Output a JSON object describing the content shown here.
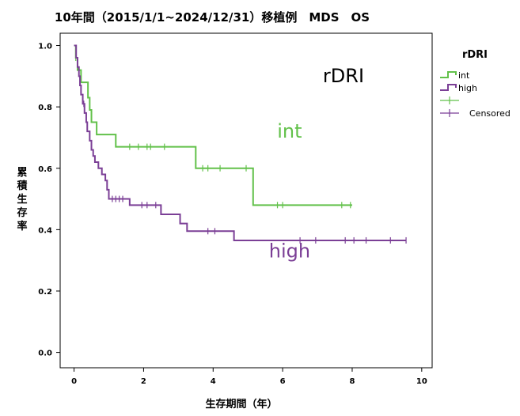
{
  "chart_data": {
    "type": "line",
    "subtype": "kaplan-meier",
    "title": "10年間（2015/1/1~2024/12/31）移植例　MDS　OS",
    "xlabel": "生存期間（年）",
    "ylabel": "累積生存率",
    "xlim": [
      -0.4,
      10.3
    ],
    "ylim": [
      -0.05,
      1.04
    ],
    "xticks": [
      0,
      2,
      4,
      6,
      8,
      10
    ],
    "yticks": [
      0.0,
      0.2,
      0.4,
      0.6,
      0.8,
      1.0
    ],
    "xtick_labels": [
      "0",
      "2",
      "4",
      "6",
      "8",
      "10"
    ],
    "ytick_labels": [
      "0.0",
      "0.2",
      "0.4",
      "0.6",
      "0.8",
      "1.0"
    ],
    "grid": false,
    "legend": {
      "title": "rDRI",
      "placement": "right",
      "entries": [
        "int",
        "high",
        "",
        "Censored"
      ]
    },
    "annotations": [
      {
        "text": "rDRI",
        "x": 7.75,
        "y": 0.88,
        "color": "#000000"
      },
      {
        "text": "int",
        "x": 6.2,
        "y": 0.7,
        "color": "#62c14a"
      },
      {
        "text": "high",
        "x": 6.2,
        "y": 0.31,
        "color": "#7b3f96"
      }
    ],
    "series": [
      {
        "name": "int",
        "color": "#62c14a",
        "steps": [
          [
            0,
            1.0
          ],
          [
            0.05,
            0.96
          ],
          [
            0.1,
            0.92
          ],
          [
            0.2,
            0.88
          ],
          [
            0.4,
            0.83
          ],
          [
            0.45,
            0.79
          ],
          [
            0.5,
            0.75
          ],
          [
            0.65,
            0.71
          ],
          [
            1.2,
            0.67
          ],
          [
            3.5,
            0.6
          ],
          [
            5.15,
            0.48
          ],
          [
            8.0,
            0.48
          ]
        ],
        "censored": [
          0.05,
          1.6,
          1.85,
          2.1,
          2.2,
          2.6,
          3.7,
          3.85,
          4.2,
          4.95,
          5.85,
          6.0,
          7.7,
          7.95
        ]
      },
      {
        "name": "high",
        "color": "#7b3f96",
        "steps": [
          [
            0,
            1.0
          ],
          [
            0.06,
            0.96
          ],
          [
            0.1,
            0.93
          ],
          [
            0.14,
            0.9
          ],
          [
            0.17,
            0.87
          ],
          [
            0.2,
            0.84
          ],
          [
            0.25,
            0.81
          ],
          [
            0.3,
            0.78
          ],
          [
            0.35,
            0.75
          ],
          [
            0.38,
            0.72
          ],
          [
            0.45,
            0.69
          ],
          [
            0.5,
            0.66
          ],
          [
            0.55,
            0.64
          ],
          [
            0.6,
            0.62
          ],
          [
            0.7,
            0.6
          ],
          [
            0.8,
            0.58
          ],
          [
            0.9,
            0.56
          ],
          [
            0.95,
            0.53
          ],
          [
            1.0,
            0.5
          ],
          [
            1.6,
            0.48
          ],
          [
            2.5,
            0.45
          ],
          [
            3.05,
            0.42
          ],
          [
            3.25,
            0.395
          ],
          [
            4.6,
            0.365
          ],
          [
            9.55,
            0.365
          ]
        ],
        "censored": [
          0.28,
          1.1,
          1.2,
          1.3,
          1.4,
          1.95,
          2.1,
          2.35,
          3.85,
          4.05,
          6.5,
          6.95,
          7.8,
          8.05,
          8.4,
          9.1,
          9.55
        ]
      }
    ]
  }
}
